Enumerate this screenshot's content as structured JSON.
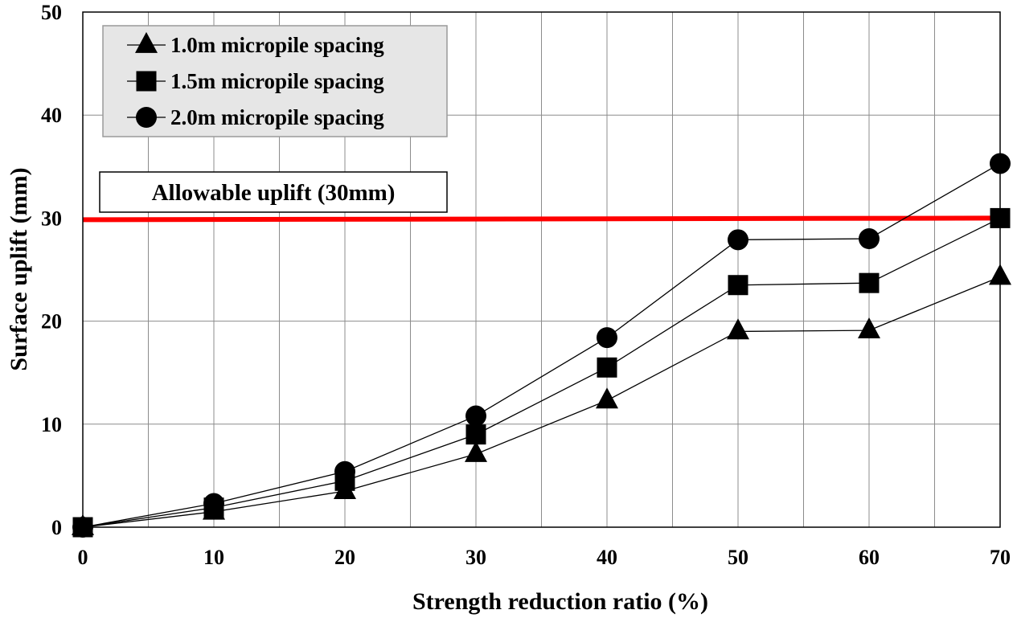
{
  "chart_data": {
    "type": "line",
    "title": "",
    "xlabel": "Strength reduction ratio (%)",
    "ylabel": "Surface uplift (mm)",
    "xlim": [
      0,
      70
    ],
    "ylim": [
      0,
      50
    ],
    "x_ticks": [
      0,
      10,
      20,
      30,
      40,
      50,
      60,
      70
    ],
    "y_ticks": [
      0,
      10,
      20,
      30,
      40,
      50
    ],
    "x_minor_step": 5,
    "grid": true,
    "legend_position": "top-left",
    "x": [
      0,
      10,
      20,
      30,
      40,
      50,
      60,
      70
    ],
    "series": [
      {
        "name": "1.0m micropile spacing",
        "marker": "triangle",
        "values": [
          0,
          1.5,
          3.5,
          7.1,
          12.3,
          19.0,
          19.1,
          24.3
        ]
      },
      {
        "name": "1.5m micropile spacing",
        "marker": "square",
        "values": [
          0,
          1.9,
          4.5,
          9.0,
          15.5,
          23.5,
          23.7,
          30.0
        ]
      },
      {
        "name": "2.0m micropile spacing",
        "marker": "circle",
        "values": [
          0,
          2.3,
          5.4,
          10.8,
          18.4,
          27.9,
          28.0,
          35.3
        ]
      }
    ],
    "reference_line": {
      "label": "Allowable uplift (30mm)",
      "value": 30,
      "color": "#ff0000"
    }
  }
}
